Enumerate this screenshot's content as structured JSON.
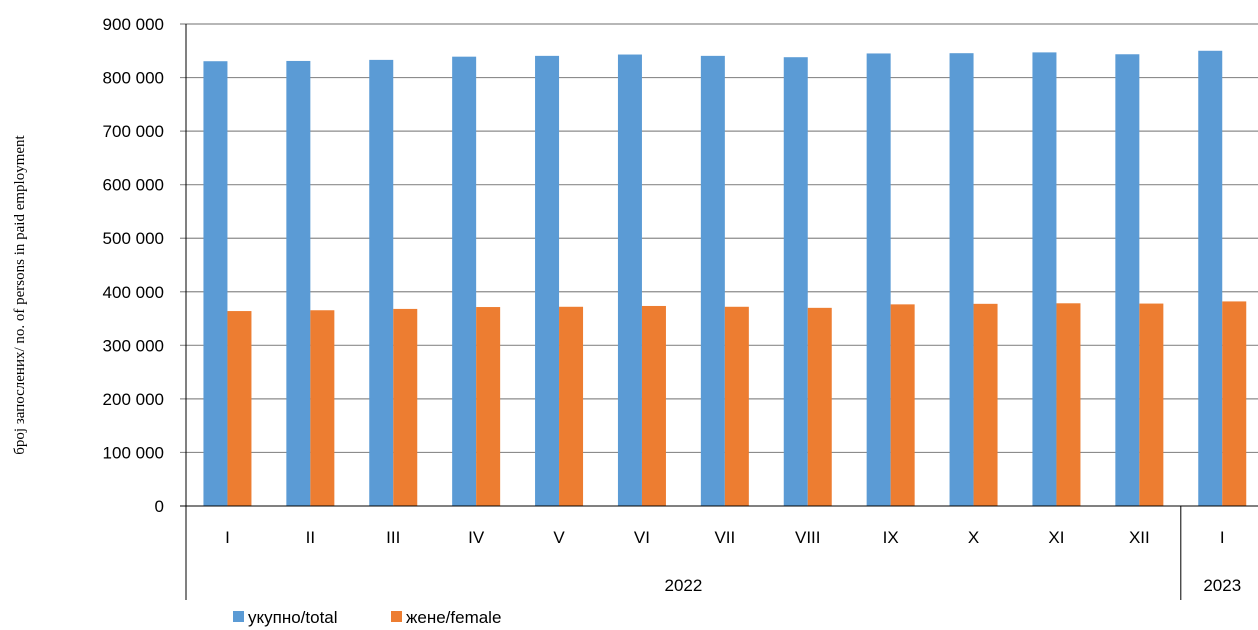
{
  "chart_data": {
    "type": "bar",
    "title": "",
    "xlabel": "",
    "ylabel": "број запослених/ no. of persons in paid employment",
    "ylim": [
      0,
      900000
    ],
    "yticks": [
      "0",
      "100 000",
      "200 000",
      "300 000",
      "400 000",
      "500 000",
      "600 000",
      "700 000",
      "800 000",
      "900 000"
    ],
    "categories": [
      "I",
      "II",
      "III",
      "IV",
      "V",
      "VI",
      "VII",
      "VIII",
      "IX",
      "X",
      "XI",
      "XII",
      "I"
    ],
    "groups": [
      {
        "label": "2022",
        "count": 12
      },
      {
        "label": "2023",
        "count": 1
      }
    ],
    "series": [
      {
        "name": "укупно/total",
        "color": "#5B9BD5",
        "values": [
          830500,
          831000,
          833000,
          839000,
          840500,
          843000,
          840500,
          838000,
          845000,
          845500,
          847000,
          843500,
          850000
        ]
      },
      {
        "name": "жене/female",
        "color": "#ED7D31",
        "values": [
          364000,
          365500,
          368000,
          371500,
          372000,
          373500,
          372000,
          370000,
          376500,
          377500,
          378500,
          378000,
          382000
        ]
      }
    ],
    "grid": true,
    "legend_position": "bottom-left"
  }
}
